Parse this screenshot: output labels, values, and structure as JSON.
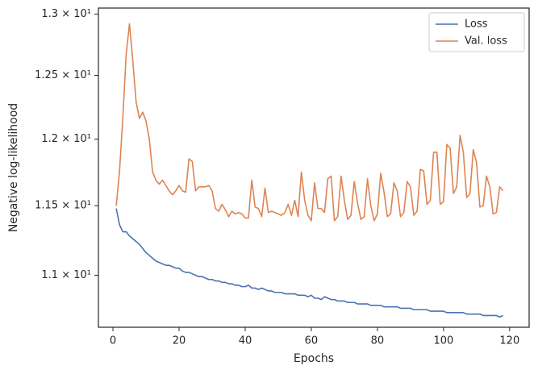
{
  "chart_data": {
    "type": "line",
    "xlabel": "Epochs",
    "ylabel": "Negative log-likelihood",
    "x": [
      1,
      2,
      3,
      4,
      5,
      6,
      7,
      8,
      9,
      10,
      11,
      12,
      13,
      14,
      15,
      16,
      17,
      18,
      19,
      20,
      21,
      22,
      23,
      24,
      25,
      26,
      27,
      28,
      29,
      30,
      31,
      32,
      33,
      34,
      35,
      36,
      37,
      38,
      39,
      40,
      41,
      42,
      43,
      44,
      45,
      46,
      47,
      48,
      49,
      50,
      51,
      52,
      53,
      54,
      55,
      56,
      57,
      58,
      59,
      60,
      61,
      62,
      63,
      64,
      65,
      66,
      67,
      68,
      69,
      70,
      71,
      72,
      73,
      74,
      75,
      76,
      77,
      78,
      79,
      80,
      81,
      82,
      83,
      84,
      85,
      86,
      87,
      88,
      89,
      90,
      91,
      92,
      93,
      94,
      95,
      96,
      97,
      98,
      99,
      100,
      101,
      102,
      103,
      104,
      105,
      106,
      107,
      108,
      109,
      110,
      111,
      112,
      113,
      114,
      115,
      116,
      117,
      118
    ],
    "series": [
      {
        "name": "Loss",
        "color": "#4c72b0",
        "values": [
          11.48,
          11.36,
          11.31,
          11.31,
          11.28,
          11.26,
          11.24,
          11.22,
          11.19,
          11.16,
          11.14,
          11.12,
          11.1,
          11.09,
          11.08,
          11.07,
          11.07,
          11.06,
          11.05,
          11.05,
          11.03,
          11.02,
          11.02,
          11.01,
          11.0,
          10.99,
          10.99,
          10.98,
          10.97,
          10.97,
          10.96,
          10.96,
          10.95,
          10.95,
          10.94,
          10.94,
          10.93,
          10.93,
          10.92,
          10.92,
          10.93,
          10.91,
          10.91,
          10.9,
          10.91,
          10.9,
          10.89,
          10.89,
          10.88,
          10.88,
          10.88,
          10.87,
          10.87,
          10.87,
          10.87,
          10.86,
          10.86,
          10.86,
          10.85,
          10.86,
          10.84,
          10.84,
          10.83,
          10.85,
          10.84,
          10.83,
          10.83,
          10.82,
          10.82,
          10.82,
          10.81,
          10.81,
          10.81,
          10.8,
          10.8,
          10.8,
          10.8,
          10.79,
          10.79,
          10.79,
          10.79,
          10.78,
          10.78,
          10.78,
          10.78,
          10.78,
          10.77,
          10.77,
          10.77,
          10.77,
          10.76,
          10.76,
          10.76,
          10.76,
          10.76,
          10.75,
          10.75,
          10.75,
          10.75,
          10.75,
          10.74,
          10.74,
          10.74,
          10.74,
          10.74,
          10.74,
          10.73,
          10.73,
          10.73,
          10.73,
          10.73,
          10.72,
          10.72,
          10.72,
          10.72,
          10.72,
          10.71,
          10.72
        ]
      },
      {
        "name": "Val. loss",
        "color": "#dd8452",
        "values": [
          11.5,
          11.76,
          12.17,
          12.67,
          12.92,
          12.62,
          12.29,
          12.16,
          12.21,
          12.14,
          12.0,
          11.75,
          11.69,
          11.66,
          11.69,
          11.65,
          11.61,
          11.58,
          11.61,
          11.65,
          11.61,
          11.6,
          11.85,
          11.83,
          11.61,
          11.64,
          11.64,
          11.64,
          11.65,
          11.61,
          11.48,
          11.46,
          11.51,
          11.47,
          11.42,
          11.46,
          11.44,
          11.45,
          11.44,
          11.41,
          11.41,
          11.69,
          11.49,
          11.48,
          11.42,
          11.63,
          11.45,
          11.46,
          11.45,
          11.44,
          11.43,
          11.45,
          11.51,
          11.43,
          11.54,
          11.42,
          11.75,
          11.54,
          11.43,
          11.39,
          11.67,
          11.48,
          11.48,
          11.45,
          11.7,
          11.72,
          11.39,
          11.42,
          11.72,
          11.54,
          11.4,
          11.43,
          11.68,
          11.52,
          11.4,
          11.42,
          11.7,
          11.5,
          11.39,
          11.44,
          11.74,
          11.6,
          11.42,
          11.44,
          11.67,
          11.61,
          11.42,
          11.45,
          11.68,
          11.64,
          11.43,
          11.46,
          11.77,
          11.76,
          11.51,
          11.54,
          11.9,
          11.9,
          11.51,
          11.53,
          11.96,
          11.93,
          11.59,
          11.64,
          12.03,
          11.9,
          11.56,
          11.59,
          11.92,
          11.82,
          11.49,
          11.5,
          11.72,
          11.64,
          11.44,
          11.45,
          11.64,
          11.61
        ]
      }
    ],
    "xlim": [
      -4.4,
      125.9
    ],
    "xticks": [
      0,
      20,
      40,
      60,
      80,
      100,
      120
    ],
    "ylim": [
      10.64,
      13.05
    ],
    "ylog": true,
    "yticks": [
      {
        "value": 11,
        "label": "1.1 × 10¹"
      },
      {
        "value": 11.5,
        "label": "1.15 × 10¹"
      },
      {
        "value": 12,
        "label": "1.2 × 10¹"
      },
      {
        "value": 12.5,
        "label": "1.25 × 10¹"
      },
      {
        "value": 13,
        "label": "1.3 × 10¹"
      }
    ],
    "legend": "upper right",
    "grid": false
  }
}
